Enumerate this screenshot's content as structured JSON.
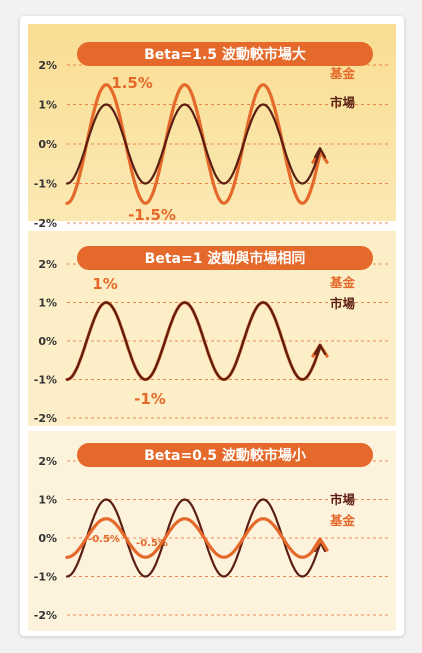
{
  "colors": {
    "fund": "#e4692a",
    "market": "#5a1f12",
    "banner": "#e4692a",
    "grid": "#e4692a",
    "panel_bg": [
      "#fae39f",
      "#fcefc8",
      "#fdf3dd"
    ]
  },
  "chart_data": [
    {
      "type": "line",
      "title": "Beta=1.5 波動較市場大",
      "ylim": [
        -2,
        2
      ],
      "y_ticks": [
        "2%",
        "1%",
        "0%",
        "-1%",
        "-2%"
      ],
      "cycles": 3,
      "series": [
        {
          "name": "基金",
          "amplitude": 1.5
        },
        {
          "name": "市場",
          "amplitude": 1.0
        }
      ],
      "annotations": {
        "max": "1.5%",
        "min": "-1.5%"
      }
    },
    {
      "type": "line",
      "title": "Beta=1 波動與市場相同",
      "ylim": [
        -2,
        2
      ],
      "y_ticks": [
        "2%",
        "1%",
        "0%",
        "-1%",
        "-2%"
      ],
      "cycles": 3,
      "series": [
        {
          "name": "基金",
          "amplitude": 1.0
        },
        {
          "name": "市場",
          "amplitude": 1.0
        }
      ],
      "annotations": {
        "max": "1%",
        "min": "-1%"
      }
    },
    {
      "type": "line",
      "title": "Beta=0.5 波動較市場小",
      "ylim": [
        -2,
        2
      ],
      "y_ticks": [
        "2%",
        "1%",
        "0%",
        "-1%",
        "-2%"
      ],
      "cycles": 3,
      "series": [
        {
          "name": "市場",
          "amplitude": 1.0
        },
        {
          "name": "基金",
          "amplitude": 0.5
        }
      ],
      "annotations": {
        "min_1": "-0.5%",
        "min_2": "-0.5%"
      }
    }
  ]
}
